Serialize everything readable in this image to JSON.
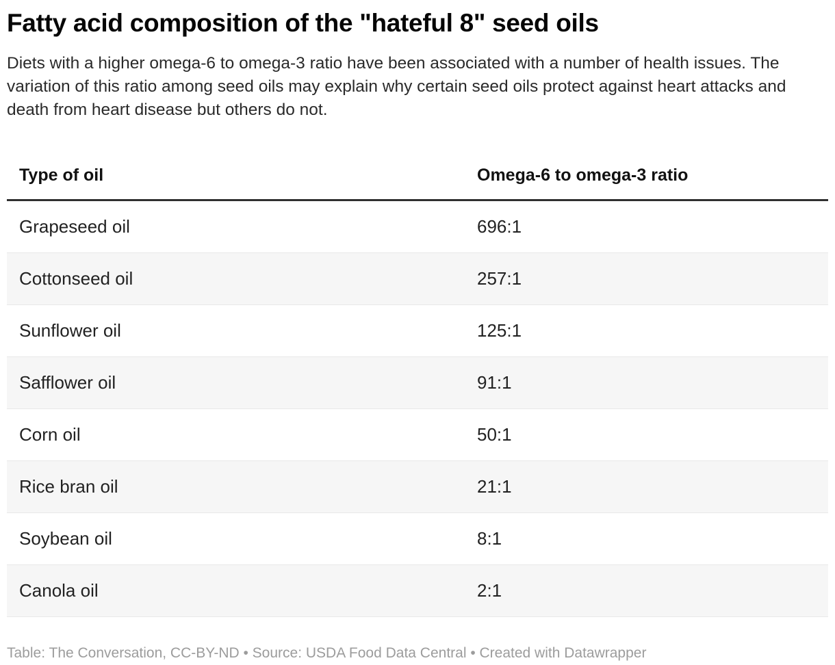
{
  "header": {
    "title": "Fatty acid composition of the \"hateful 8\" seed oils",
    "description": "Diets with a higher omega-6 to omega-3 ratio have been associated with a number of health issues. The variation of this ratio among seed oils may explain why certain seed oils protect against heart attacks and death from heart disease but others do not."
  },
  "table": {
    "columns": [
      "Type of oil",
      "Omega-6 to omega-3 ratio"
    ],
    "rows": [
      {
        "oil": "Grapeseed oil",
        "ratio": "696:1"
      },
      {
        "oil": "Cottonseed oil",
        "ratio": "257:1"
      },
      {
        "oil": "Sunflower oil",
        "ratio": "125:1"
      },
      {
        "oil": "Safflower oil",
        "ratio": "91:1"
      },
      {
        "oil": "Corn oil",
        "ratio": "50:1"
      },
      {
        "oil": "Rice bran oil",
        "ratio": "21:1"
      },
      {
        "oil": "Soybean oil",
        "ratio": "8:1"
      },
      {
        "oil": "Canola oil",
        "ratio": "2:1"
      }
    ]
  },
  "footer": {
    "text": "Table: The Conversation, CC-BY-ND • Source: USDA Food Data Central • Created with Datawrapper"
  },
  "colors": {
    "background": "#ffffff",
    "title_text": "#060606",
    "body_text": "#222222",
    "header_rule": "#2f2f2f",
    "row_stripe": "#f6f6f6",
    "row_border": "#e8e8e8",
    "footer_text": "#9c9c9c"
  },
  "chart_data": {
    "type": "table",
    "title": "Fatty acid composition of the \"hateful 8\" seed oils",
    "subtitle": "Diets with a higher omega-6 to omega-3 ratio have been associated with a number of health issues. The variation of this ratio among seed oils may explain why certain seed oils protect against heart attacks and death from heart disease but others do not.",
    "columns": [
      "Type of oil",
      "Omega-6 to omega-3 ratio"
    ],
    "categories": [
      "Grapeseed oil",
      "Cottonseed oil",
      "Sunflower oil",
      "Safflower oil",
      "Corn oil",
      "Rice bran oil",
      "Soybean oil",
      "Canola oil"
    ],
    "values": [
      "696:1",
      "257:1",
      "125:1",
      "91:1",
      "50:1",
      "21:1",
      "8:1",
      "2:1"
    ],
    "ratio_numeric": [
      696,
      257,
      125,
      91,
      50,
      21,
      8,
      2
    ],
    "layout": {
      "zebra_striping": true,
      "stripe_rows": "even",
      "header_rule_thickness_px": 3,
      "source_line": "Table: The Conversation, CC-BY-ND • Source: USDA Food Data Central • Created with Datawrapper"
    }
  }
}
